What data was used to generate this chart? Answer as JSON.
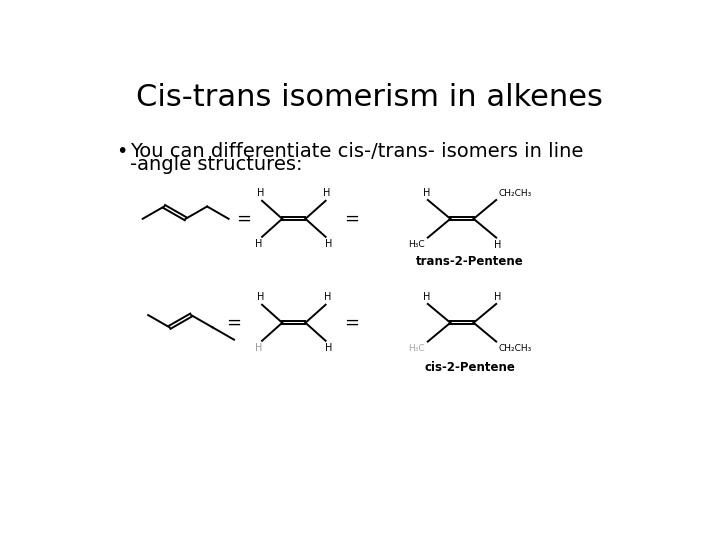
{
  "title": "Cis-trans isomerism in alkenes",
  "bullet_line1": "You can differentiate cis-/trans- isomers in line",
  "bullet_line2": "-angle structures:",
  "title_fontsize": 22,
  "bullet_fontsize": 14,
  "background": "#ffffff",
  "line_color": "#000000",
  "trans_label": "trans-2-Pentene",
  "cis_label": "cis-2-Pentene"
}
